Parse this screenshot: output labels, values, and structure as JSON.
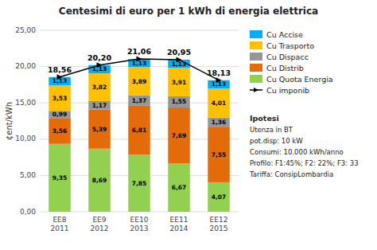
{
  "chart_data": {
    "type": "bar",
    "stacked": true,
    "title": "Centesimi di euro per 1 kWh di energia elettrica",
    "y_label": "¢ent/kWh",
    "categories": [
      "EE8\n2011",
      "EE9\n2012",
      "EE10\n2013",
      "EE11\n2014",
      "EE12\n2015"
    ],
    "series": [
      {
        "name": "Cu Quota Energia",
        "color": "#92d050",
        "values": [
          9.35,
          8.69,
          7.85,
          6.67,
          4.07
        ],
        "value_labels": [
          "9,35",
          "8,69",
          "7,85",
          "6,67",
          "4,07"
        ]
      },
      {
        "name": "Cu Distrib",
        "color": "#e36c09",
        "values": [
          3.56,
          5.39,
          6.81,
          7.69,
          7.55
        ],
        "value_labels": [
          "3,56",
          "5,39",
          "6,81",
          "7,69",
          "7,55"
        ]
      },
      {
        "name": "Cu Dispacc",
        "color": "#969696",
        "values": [
          0.99,
          1.17,
          1.37,
          1.55,
          1.36
        ],
        "value_labels": [
          "0,99",
          "1,17",
          "1,37",
          "1,55",
          "1,36"
        ]
      },
      {
        "name": "Cu Trasporto",
        "color": "#ffc000",
        "values": [
          3.53,
          3.82,
          3.89,
          3.91,
          4.01
        ],
        "value_labels": [
          "3,53",
          "3,82",
          "3,89",
          "3,91",
          "4,01"
        ]
      },
      {
        "name": "Cu Accise",
        "color": "#00b0f0",
        "values": [
          1.13,
          1.13,
          1.13,
          1.13,
          1.13
        ],
        "value_labels": [
          "1,13",
          "1,13",
          "1,13",
          "1,13",
          "1,13"
        ]
      },
      {
        "name": "Cu imponib",
        "type": "line",
        "color": "#000000",
        "marker": "triangle",
        "line_style": "solid",
        "values": [
          18.56,
          20.2,
          21.06,
          20.95,
          18.13
        ],
        "value_labels": [
          "18,56",
          "20,20",
          "21,06",
          "20,95",
          "18,13"
        ]
      }
    ],
    "ylim": [
      0,
      25
    ],
    "yticks": [
      {
        "value": 0.0,
        "label": "0,00"
      },
      {
        "value": 5.0,
        "label": "5,00"
      },
      {
        "value": 10.0,
        "label": "10,00"
      },
      {
        "value": 15.0,
        "label": "15,00"
      },
      {
        "value": 20.0,
        "label": "20,00"
      },
      {
        "value": 25.0,
        "label": "25,00"
      }
    ],
    "grid": true,
    "data_labels": true,
    "legend": "right",
    "annotations": [
      "Ipotesi",
      "Utenza in BT",
      "pot.disp: 10 kW",
      "Consumi: 10.000 kWh/anno",
      "Profilo: F1:45%; F2: 22%; F3: 33",
      "Tariffa: ConsipLombardia"
    ]
  }
}
